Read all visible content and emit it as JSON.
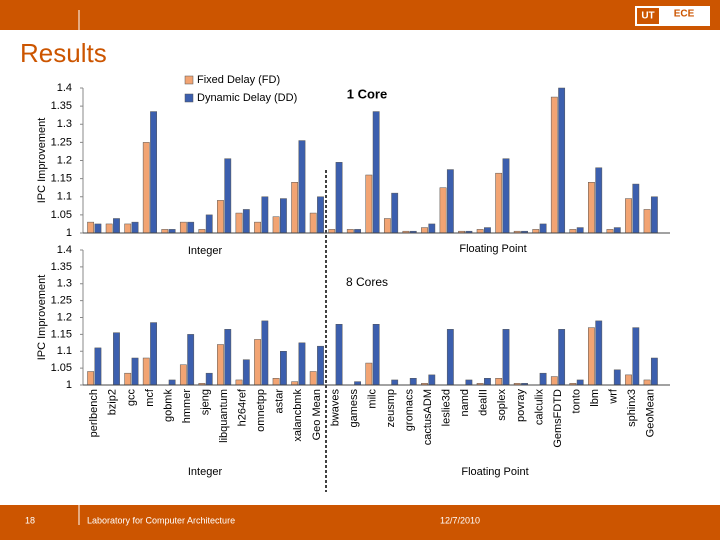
{
  "slide": {
    "title": "Results",
    "logo": [
      "UT",
      "ECE"
    ],
    "page_number": "18",
    "footer": "Laboratory for Computer Architecture",
    "date": "12/7/2010"
  },
  "chart_data": [
    {
      "type": "bar",
      "title": "1 Core",
      "y_label": "IPC Improvement",
      "group_labels": [
        "Integer",
        "Floating Point"
      ],
      "ylim": [
        1,
        1.4
      ],
      "yticks": [
        1,
        1.05,
        1.1,
        1.15,
        1.2,
        1.25,
        1.3,
        1.35,
        1.4
      ],
      "legend": true,
      "series": [
        {
          "name": "Fixed Delay (FD)",
          "color": "#f2a473",
          "values": [
            1.03,
            1.025,
            1.025,
            1.25,
            1.01,
            1.03,
            1.01,
            1.09,
            1.055,
            1.03,
            1.045,
            1.14,
            1.055,
            1.01,
            1.01,
            1.16,
            1.04,
            1.005,
            1.015,
            1.125,
            1.005,
            1.01,
            1.165,
            1.005,
            1.01,
            1.375,
            1.01,
            1.14,
            1.01,
            1.095,
            1.065
          ]
        },
        {
          "name": "Dynamic Delay (DD)",
          "color": "#3c5fae",
          "values": [
            1.025,
            1.04,
            1.03,
            1.335,
            1.01,
            1.03,
            1.05,
            1.205,
            1.065,
            1.1,
            1.095,
            1.255,
            1.1,
            1.195,
            1.01,
            1.335,
            1.11,
            1.005,
            1.025,
            1.175,
            1.005,
            1.015,
            1.205,
            1.005,
            1.025,
            1.4,
            1.015,
            1.18,
            1.015,
            1.135,
            1.1
          ]
        }
      ]
    },
    {
      "type": "bar",
      "title": "8 Cores",
      "y_label": "IPC Improvement",
      "group_labels": [
        "Integer",
        "Floating Point"
      ],
      "ylim": [
        1,
        1.4
      ],
      "yticks": [
        1,
        1.05,
        1.1,
        1.15,
        1.2,
        1.25,
        1.3,
        1.35,
        1.4
      ],
      "legend": false,
      "categories": [
        "perlbench",
        "bzip2",
        "gcc",
        "mcf",
        "gobmk",
        "hmmer",
        "sjeng",
        "libquantum",
        "h264ref",
        "omnetpp",
        "astar",
        "xalancbmk",
        "Geo Mean",
        "bwaves",
        "gamess",
        "milc",
        "zeusmp",
        "gromacs",
        "cactusADM",
        "leslie3d",
        "namd",
        "dealII",
        "soplex",
        "povray",
        "calculix",
        "GemsFDTD",
        "tonto",
        "lbm",
        "wrf",
        "sphinx3",
        "GeoMean"
      ],
      "series": [
        {
          "color": "#f2a473",
          "values": [
            1.04,
            1.0,
            1.035,
            1.08,
            1.0,
            1.06,
            1.005,
            1.12,
            1.015,
            1.135,
            1.02,
            1.01,
            1.04,
            1.0,
            1.0,
            1.065,
            1.0,
            1.0,
            1.005,
            1.0,
            1.0,
            1.005,
            1.02,
            1.005,
            1.0,
            1.025,
            1.005,
            1.17,
            1.0,
            1.03,
            1.015
          ]
        },
        {
          "color": "#3c5fae",
          "values": [
            1.11,
            1.155,
            1.08,
            1.185,
            1.015,
            1.15,
            1.035,
            1.165,
            1.075,
            1.19,
            1.1,
            1.125,
            1.115,
            1.18,
            1.01,
            1.18,
            1.015,
            1.02,
            1.03,
            1.165,
            1.015,
            1.02,
            1.165,
            1.005,
            1.035,
            1.165,
            1.015,
            1.19,
            1.045,
            1.17,
            1.08
          ]
        }
      ]
    }
  ]
}
